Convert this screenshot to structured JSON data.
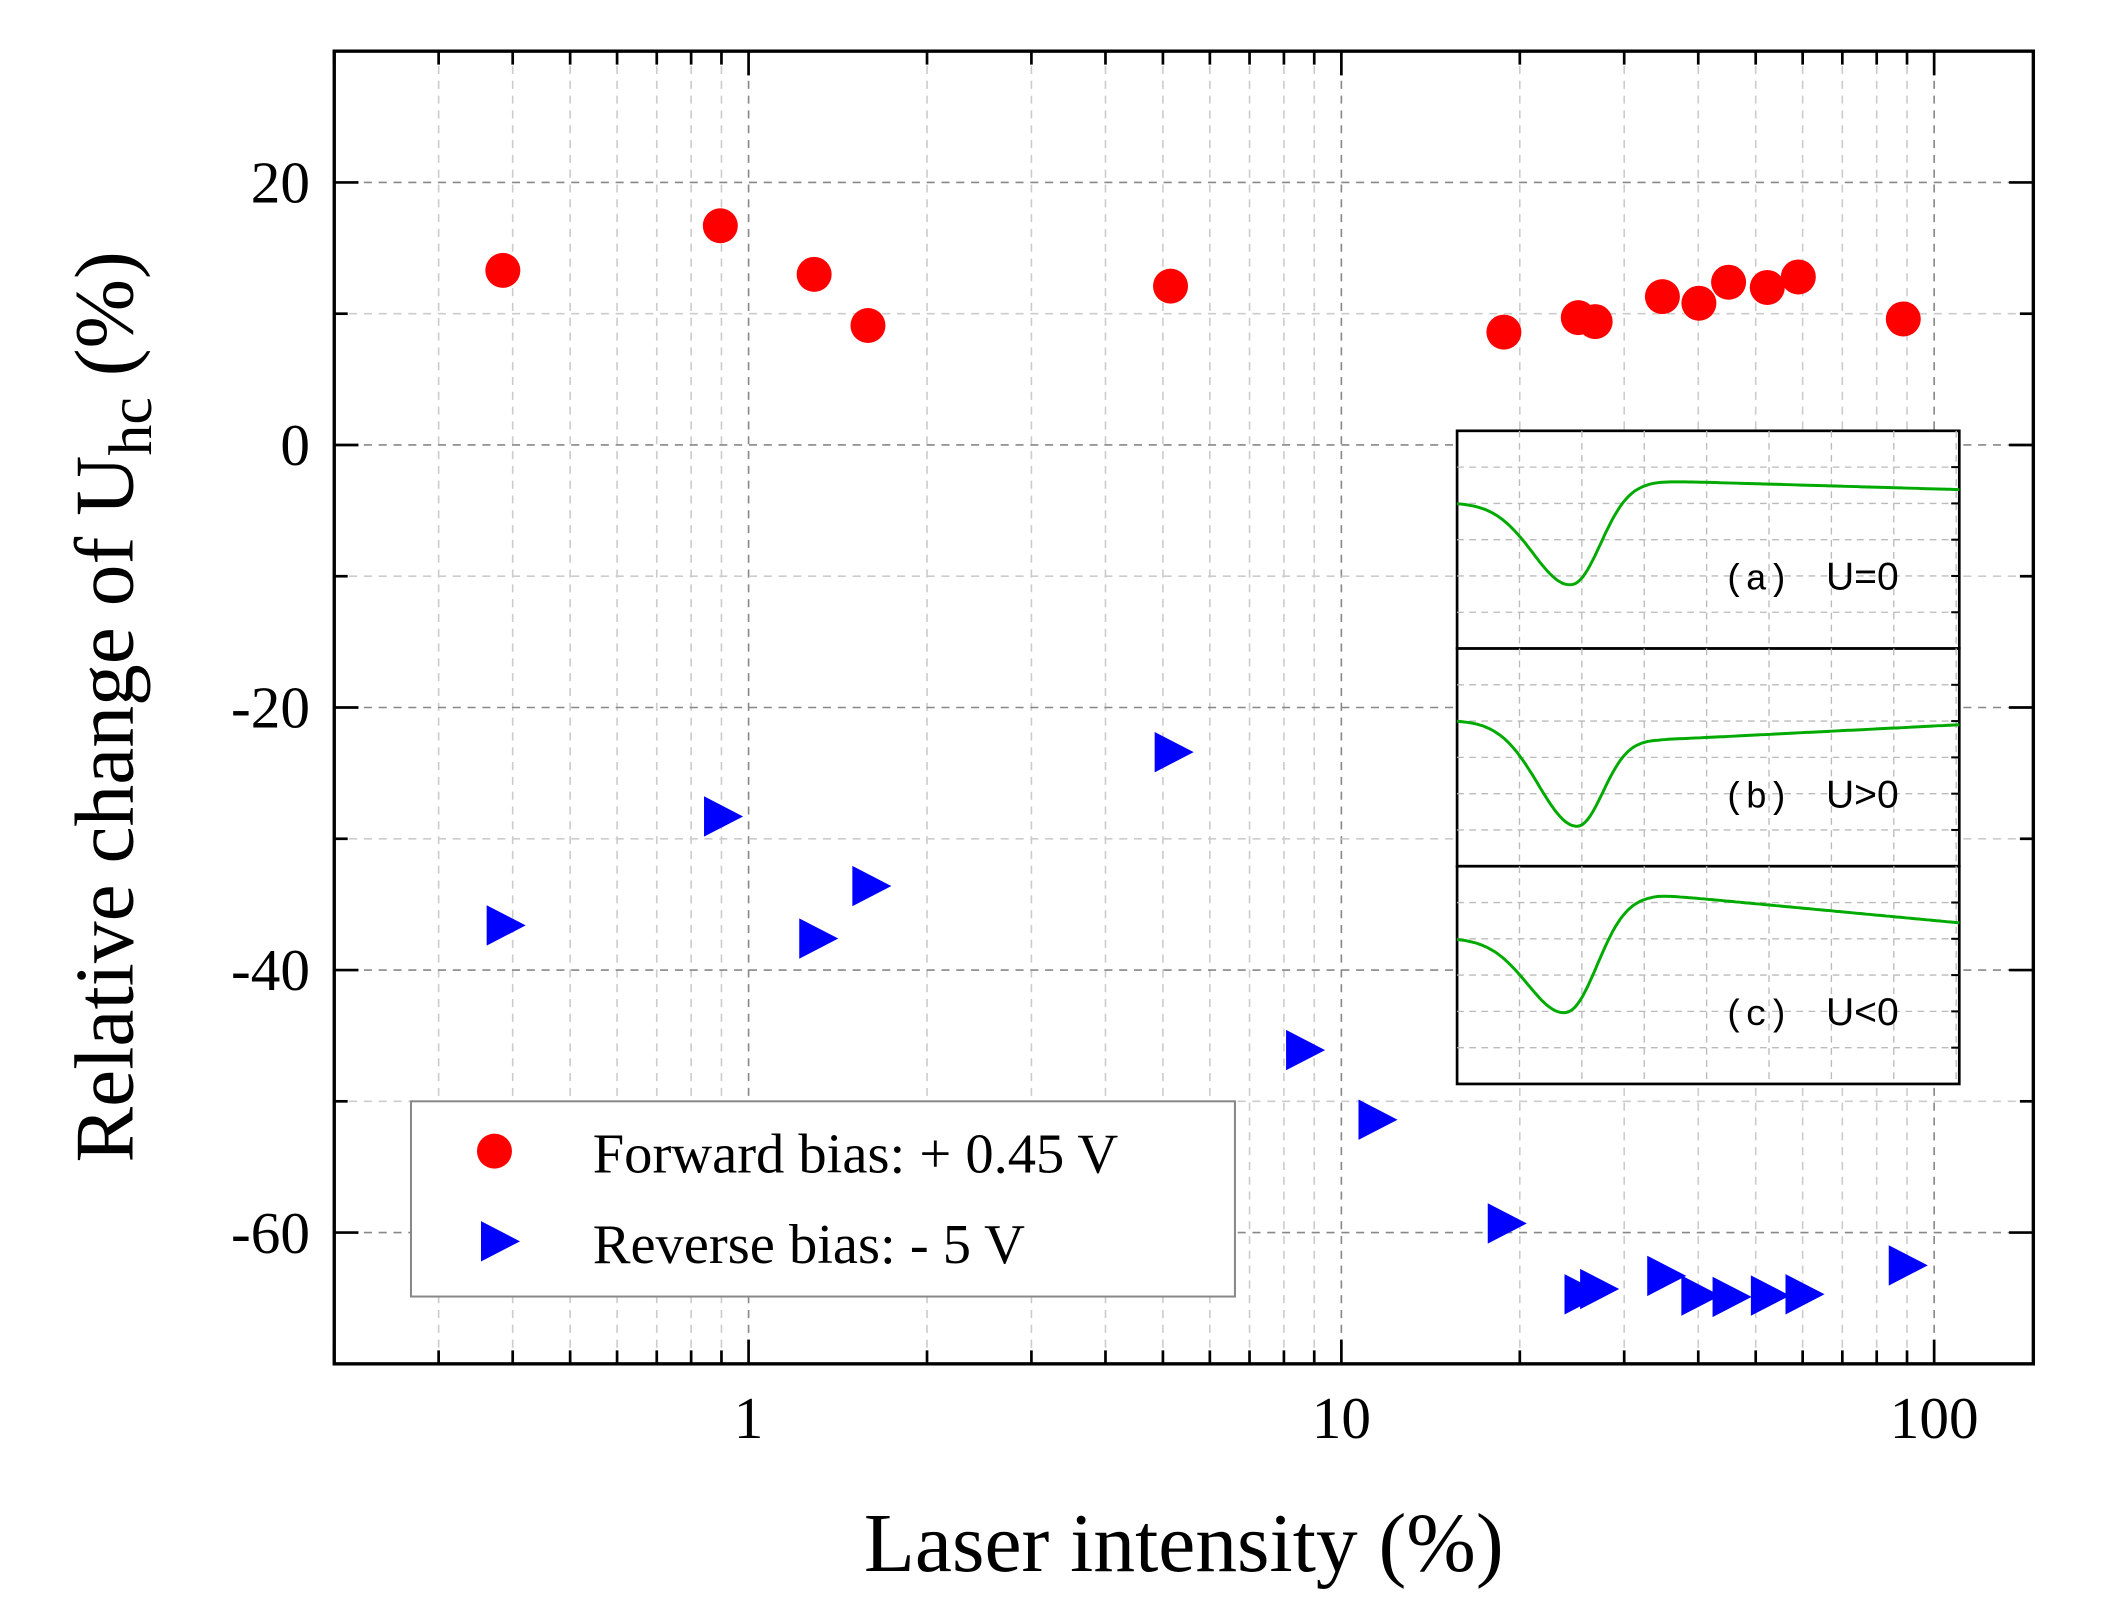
{
  "chart_data": {
    "type": "scatter",
    "title": "",
    "xlabel": "Laser intensity (%)",
    "ylabel_main": "Relative change of U",
    "ylabel_sub": "hc",
    "ylabel_suffix": " (%)",
    "xscale": "log",
    "xlim": [
      0.2,
      147
    ],
    "ylim": [
      -70,
      30
    ],
    "xticks": [
      {
        "v": 1,
        "label": "1"
      },
      {
        "v": 10,
        "label": "10"
      },
      {
        "v": 100,
        "label": "100"
      }
    ],
    "yticks": [
      {
        "v": 20,
        "label": "20"
      },
      {
        "v": 0,
        "label": "0"
      },
      {
        "v": -20,
        "label": "-20"
      },
      {
        "v": -40,
        "label": "-40"
      },
      {
        "v": -60,
        "label": "-60"
      }
    ],
    "grid": true,
    "legend_position": "bottom-left",
    "series": [
      {
        "name": "Forward bias: + 0.45 V",
        "marker": "circle",
        "color": "#ff0000",
        "x": [
          0.385,
          0.896,
          1.29,
          1.59,
          5.15,
          18.8,
          25.1,
          26.8,
          34.8,
          40.1,
          45.0,
          52.3,
          59.0,
          88.7
        ],
        "y": [
          13.3,
          16.7,
          13.0,
          9.1,
          12.1,
          8.6,
          9.7,
          9.4,
          11.3,
          10.8,
          12.4,
          12.0,
          12.8,
          9.6
        ]
      },
      {
        "name": "Reverse bias: - 5 V",
        "marker": "triangle-right",
        "color": "#0000ff",
        "x": [
          0.389,
          0.905,
          1.31,
          1.61,
          5.21,
          8.68,
          11.5,
          19.0,
          25.6,
          27.2,
          35.3,
          40.3,
          45.5,
          52.8,
          60.4,
          90.2
        ],
        "y": [
          -36.6,
          -28.3,
          -37.6,
          -33.6,
          -23.4,
          -46.1,
          -51.4,
          -59.3,
          -64.7,
          -64.3,
          -63.3,
          -64.8,
          -64.9,
          -64.8,
          -64.7,
          -62.5
        ]
      }
    ],
    "inset": {
      "color": "#00aa00",
      "panels": [
        {
          "tag": "(a)",
          "label": "U=0",
          "base": 0.33,
          "dip": 0.72,
          "dip_at": 0.23,
          "peak": 0.23,
          "end": 0.27
        },
        {
          "tag": "(b)",
          "label": "U>0",
          "base": 0.33,
          "dip": 0.82,
          "dip_at": 0.24,
          "peak": 0.42,
          "end": 0.35
        },
        {
          "tag": "(c)",
          "label": "U<0",
          "base": 0.33,
          "dip": 0.69,
          "dip_at": 0.22,
          "peak": 0.13,
          "end": 0.26
        }
      ]
    }
  }
}
